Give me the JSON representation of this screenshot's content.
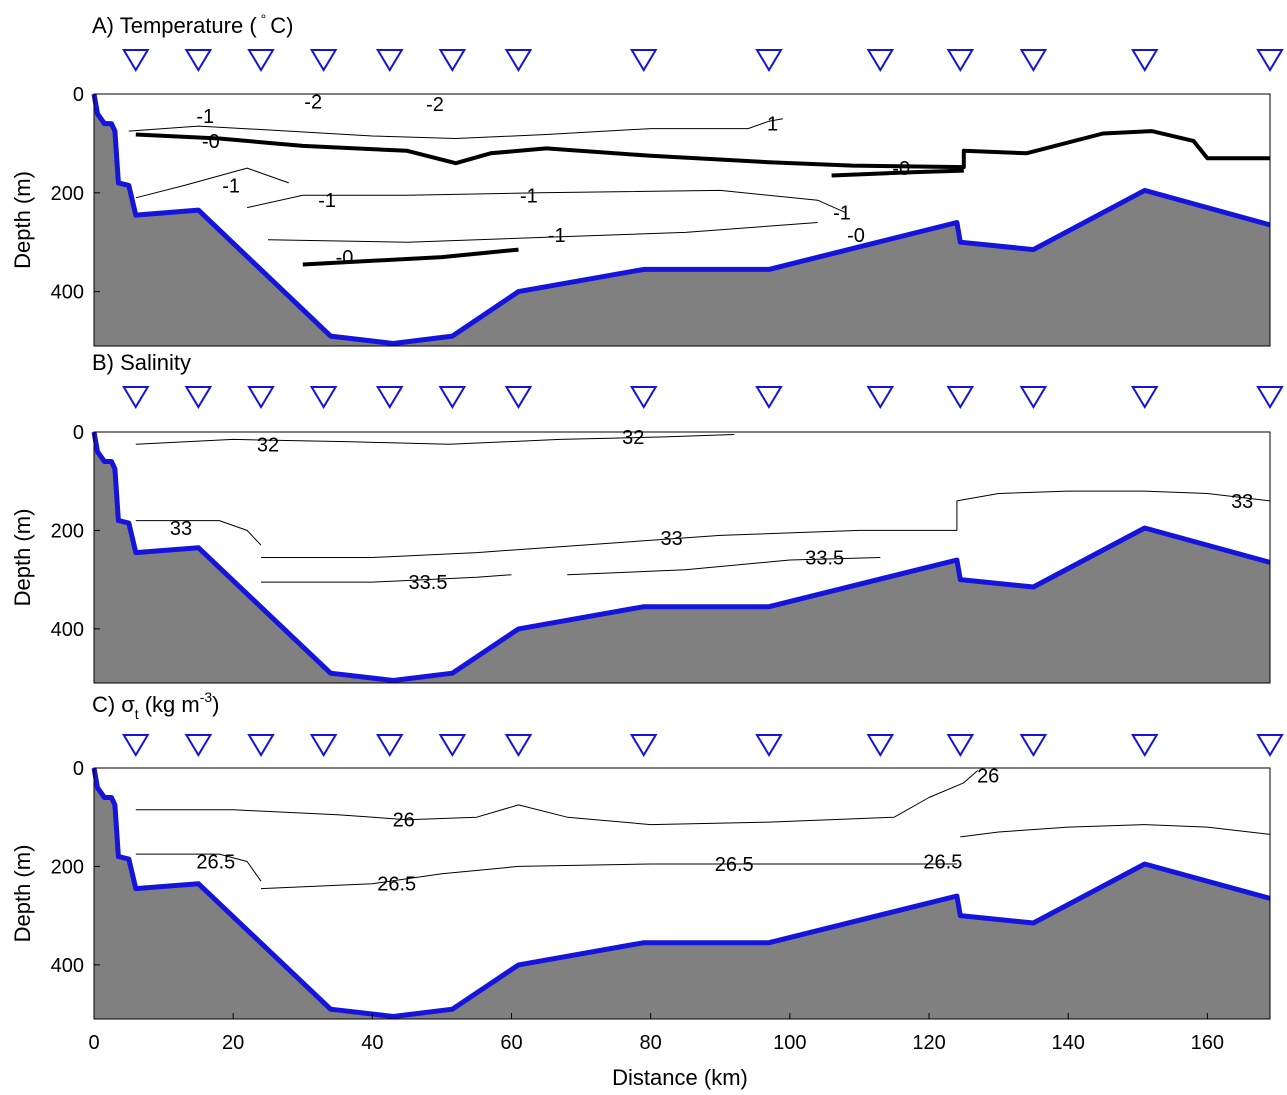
{
  "figure": {
    "xlabel": "Distance (km)",
    "ylabel": "Depth (m)"
  },
  "chart_data": [
    {
      "type": "contour",
      "title": "A) Temperature (",
      "title_tail": "C)",
      "xlabel": "Distance (km)",
      "ylabel": "Depth (m)",
      "xlim": [
        0,
        169
      ],
      "ylim": [
        0,
        510
      ],
      "y_reversed": true,
      "x_ticks": [],
      "y_ticks": [
        0,
        200,
        400
      ],
      "stations_km": [
        6,
        15,
        24,
        33,
        42.5,
        51.5,
        61,
        79,
        97,
        113,
        124.5,
        135,
        151,
        169
      ],
      "bottom_profile": [
        [
          0,
          0
        ],
        [
          0.5,
          40
        ],
        [
          1.5,
          60
        ],
        [
          2.5,
          60
        ],
        [
          3,
          75
        ],
        [
          3.5,
          180
        ],
        [
          5,
          185
        ],
        [
          6,
          245
        ],
        [
          15,
          235
        ],
        [
          34,
          490
        ],
        [
          43,
          505
        ],
        [
          51.5,
          490
        ],
        [
          61,
          400
        ],
        [
          79,
          355
        ],
        [
          97,
          355
        ],
        [
          124,
          260
        ],
        [
          124.5,
          300
        ],
        [
          135,
          315
        ],
        [
          151,
          195
        ],
        [
          169,
          265
        ]
      ],
      "contour_lines": [
        {
          "level": "-1",
          "bold": false,
          "points": [
            [
              5,
              75
            ],
            [
              15,
              65
            ],
            [
              28,
              75
            ],
            [
              40,
              85
            ],
            [
              52,
              90
            ],
            [
              65,
              82
            ],
            [
              80,
              70
            ],
            [
              94,
              70
            ],
            [
              97,
              55
            ],
            [
              99,
              50
            ]
          ]
        },
        {
          "level": "-0",
          "bold": true,
          "points": [
            [
              6,
              82
            ],
            [
              18,
              90
            ],
            [
              30,
              105
            ],
            [
              45,
              115
            ],
            [
              52,
              140
            ],
            [
              57,
              120
            ],
            [
              65,
              110
            ],
            [
              80,
              125
            ],
            [
              97,
              138
            ],
            [
              109,
              145
            ],
            [
              125,
              148
            ],
            [
              125,
              115
            ],
            [
              134,
              120
            ],
            [
              145,
              80
            ],
            [
              152,
              75
            ],
            [
              158,
              95
            ],
            [
              160,
              130
            ],
            [
              169,
              130
            ]
          ]
        },
        {
          "level": "-0",
          "bold": true,
          "points": [
            [
              106,
              165
            ],
            [
              118,
              158
            ],
            [
              125,
              155
            ]
          ]
        },
        {
          "level": "-1",
          "bold": false,
          "points": [
            [
              6,
              210
            ],
            [
              13,
              185
            ],
            [
              22,
              150
            ],
            [
              28,
              180
            ]
          ]
        },
        {
          "level": "-1",
          "bold": false,
          "points": [
            [
              22,
              230
            ],
            [
              30,
              205
            ],
            [
              45,
              205
            ],
            [
              64,
              200
            ],
            [
              90,
              195
            ],
            [
              104,
              215
            ],
            [
              108,
              240
            ]
          ]
        },
        {
          "level": "-1",
          "bold": false,
          "points": [
            [
              25,
              295
            ],
            [
              45,
              300
            ],
            [
              65,
              290
            ],
            [
              85,
              280
            ],
            [
              104,
              260
            ]
          ]
        },
        {
          "level": "-0",
          "bold": true,
          "points": [
            [
              30,
              345
            ],
            [
              50,
              330
            ],
            [
              61,
              315
            ]
          ]
        }
      ],
      "contour_labels": [
        {
          "text": "-2",
          "x": 31.5,
          "y": 15
        },
        {
          "text": "-2",
          "x": 49,
          "y": 20
        },
        {
          "text": "-1",
          "x": 16,
          "y": 45
        },
        {
          "text": "-0",
          "x": 16.8,
          "y": 95
        },
        {
          "text": "-1",
          "x": 19.7,
          "y": 185
        },
        {
          "text": "-1",
          "x": 33.5,
          "y": 215
        },
        {
          "text": "-1",
          "x": 62.5,
          "y": 205
        },
        {
          "text": "-1",
          "x": 66.5,
          "y": 285
        },
        {
          "text": "-0",
          "x": 36,
          "y": 330
        },
        {
          "text": "1",
          "x": 97.5,
          "y": 60
        },
        {
          "text": "-0",
          "x": 116,
          "y": 150
        },
        {
          "text": "-1",
          "x": 107.5,
          "y": 240
        },
        {
          "text": "-0",
          "x": 109.5,
          "y": 285
        }
      ]
    },
    {
      "type": "contour",
      "title": "B) Salinity",
      "xlabel": "Distance (km)",
      "ylabel": "Depth (m)",
      "xlim": [
        0,
        169
      ],
      "ylim": [
        0,
        510
      ],
      "y_reversed": true,
      "x_ticks": [],
      "y_ticks": [
        0,
        200,
        400
      ],
      "stations_km": [
        6,
        15,
        24,
        33,
        42.5,
        51.5,
        61,
        79,
        97,
        113,
        124.5,
        135,
        151,
        169
      ],
      "bottom_profile": [
        [
          0,
          0
        ],
        [
          0.5,
          40
        ],
        [
          1.5,
          60
        ],
        [
          2.5,
          60
        ],
        [
          3,
          75
        ],
        [
          3.5,
          180
        ],
        [
          5,
          185
        ],
        [
          6,
          245
        ],
        [
          15,
          235
        ],
        [
          34,
          490
        ],
        [
          43,
          505
        ],
        [
          51.5,
          490
        ],
        [
          61,
          400
        ],
        [
          79,
          355
        ],
        [
          97,
          355
        ],
        [
          124,
          260
        ],
        [
          124.5,
          300
        ],
        [
          135,
          315
        ],
        [
          151,
          195
        ],
        [
          169,
          265
        ]
      ],
      "contour_lines": [
        {
          "level": "32",
          "bold": false,
          "points": [
            [
              6,
              25
            ],
            [
              20,
              15
            ],
            [
              37,
              20
            ],
            [
              51,
              25
            ],
            [
              67,
              15
            ],
            [
              82,
              10
            ],
            [
              92,
              5
            ]
          ]
        },
        {
          "level": "33",
          "bold": false,
          "points": [
            [
              6,
              180
            ],
            [
              18,
              180
            ],
            [
              22,
              200
            ],
            [
              24,
              230
            ]
          ]
        },
        {
          "level": "33",
          "bold": false,
          "points": [
            [
              24,
              255
            ],
            [
              40,
              255
            ],
            [
              55,
              245
            ],
            [
              70,
              230
            ],
            [
              90,
              210
            ],
            [
              110,
              200
            ],
            [
              124,
              200
            ],
            [
              124,
              140
            ],
            [
              130,
              125
            ],
            [
              140,
              120
            ],
            [
              151,
              120
            ],
            [
              160,
              125
            ],
            [
              169,
              140
            ]
          ]
        },
        {
          "level": "33.5",
          "bold": false,
          "points": [
            [
              24,
              305
            ],
            [
              40,
              305
            ],
            [
              55,
              295
            ],
            [
              60,
              290
            ]
          ]
        },
        {
          "level": "33.5",
          "bold": false,
          "points": [
            [
              68,
              290
            ],
            [
              85,
              280
            ],
            [
              100,
              260
            ],
            [
              113,
              255
            ]
          ]
        }
      ],
      "contour_labels": [
        {
          "text": "32",
          "x": 25,
          "y": 25
        },
        {
          "text": "32",
          "x": 77.5,
          "y": 10
        },
        {
          "text": "33",
          "x": 12.5,
          "y": 195
        },
        {
          "text": "33",
          "x": 83,
          "y": 215
        },
        {
          "text": "33",
          "x": 165,
          "y": 140
        },
        {
          "text": "33.5",
          "x": 48,
          "y": 305
        },
        {
          "text": "33.5",
          "x": 105,
          "y": 255
        }
      ]
    },
    {
      "type": "contour",
      "title": "C)",
      "title_symbol": "σ",
      "title_subscript": "t",
      "title_units": "(kg m",
      "title_exp": "-3",
      "title_close": ")",
      "xlabel": "Distance (km)",
      "ylabel": "Depth (m)",
      "xlim": [
        0,
        169
      ],
      "ylim": [
        0,
        510
      ],
      "y_reversed": true,
      "x_ticks": [
        0,
        20,
        40,
        60,
        80,
        100,
        120,
        140,
        160
      ],
      "y_ticks": [
        0,
        200,
        400
      ],
      "stations_km": [
        6,
        15,
        24,
        33,
        42.5,
        51.5,
        61,
        79,
        97,
        113,
        124.5,
        135,
        151,
        169
      ],
      "bottom_profile": [
        [
          0,
          0
        ],
        [
          0.5,
          40
        ],
        [
          1.5,
          60
        ],
        [
          2.5,
          60
        ],
        [
          3,
          75
        ],
        [
          3.5,
          180
        ],
        [
          5,
          185
        ],
        [
          6,
          245
        ],
        [
          15,
          235
        ],
        [
          34,
          490
        ],
        [
          43,
          505
        ],
        [
          51.5,
          490
        ],
        [
          61,
          400
        ],
        [
          79,
          355
        ],
        [
          97,
          355
        ],
        [
          124,
          260
        ],
        [
          124.5,
          300
        ],
        [
          135,
          315
        ],
        [
          151,
          195
        ],
        [
          169,
          265
        ]
      ],
      "contour_lines": [
        {
          "level": "26",
          "bold": false,
          "points": [
            [
              6,
              85
            ],
            [
              20,
              85
            ],
            [
              35,
              95
            ],
            [
              45,
              105
            ],
            [
              55,
              100
            ],
            [
              61,
              75
            ],
            [
              68,
              100
            ],
            [
              80,
              115
            ],
            [
              97,
              110
            ],
            [
              115,
              100
            ],
            [
              120,
              60
            ],
            [
              125,
              30
            ],
            [
              127,
              5
            ]
          ]
        },
        {
          "level": "26",
          "bold": false,
          "points": [
            [
              124.5,
              140
            ],
            [
              130,
              130
            ],
            [
              140,
              120
            ],
            [
              151,
              115
            ],
            [
              160,
              120
            ],
            [
              169,
              135
            ]
          ]
        },
        {
          "level": "26.5",
          "bold": false,
          "points": [
            [
              6,
              175
            ],
            [
              18,
              175
            ],
            [
              22,
              190
            ],
            [
              24,
              230
            ]
          ]
        },
        {
          "level": "26.5",
          "bold": false,
          "points": [
            [
              24,
              245
            ],
            [
              40,
              235
            ],
            [
              50,
              215
            ],
            [
              61,
              200
            ],
            [
              80,
              195
            ],
            [
              97,
              195
            ],
            [
              110,
              195
            ],
            [
              124,
              195
            ]
          ]
        }
      ],
      "contour_labels": [
        {
          "text": "26",
          "x": 44.5,
          "y": 105
        },
        {
          "text": "26",
          "x": 128.5,
          "y": 15
        },
        {
          "text": "26.5",
          "x": 17.5,
          "y": 190
        },
        {
          "text": "26.5",
          "x": 43.5,
          "y": 235
        },
        {
          "text": "26.5",
          "x": 92,
          "y": 195
        },
        {
          "text": "26.5",
          "x": 122,
          "y": 190
        }
      ]
    }
  ]
}
